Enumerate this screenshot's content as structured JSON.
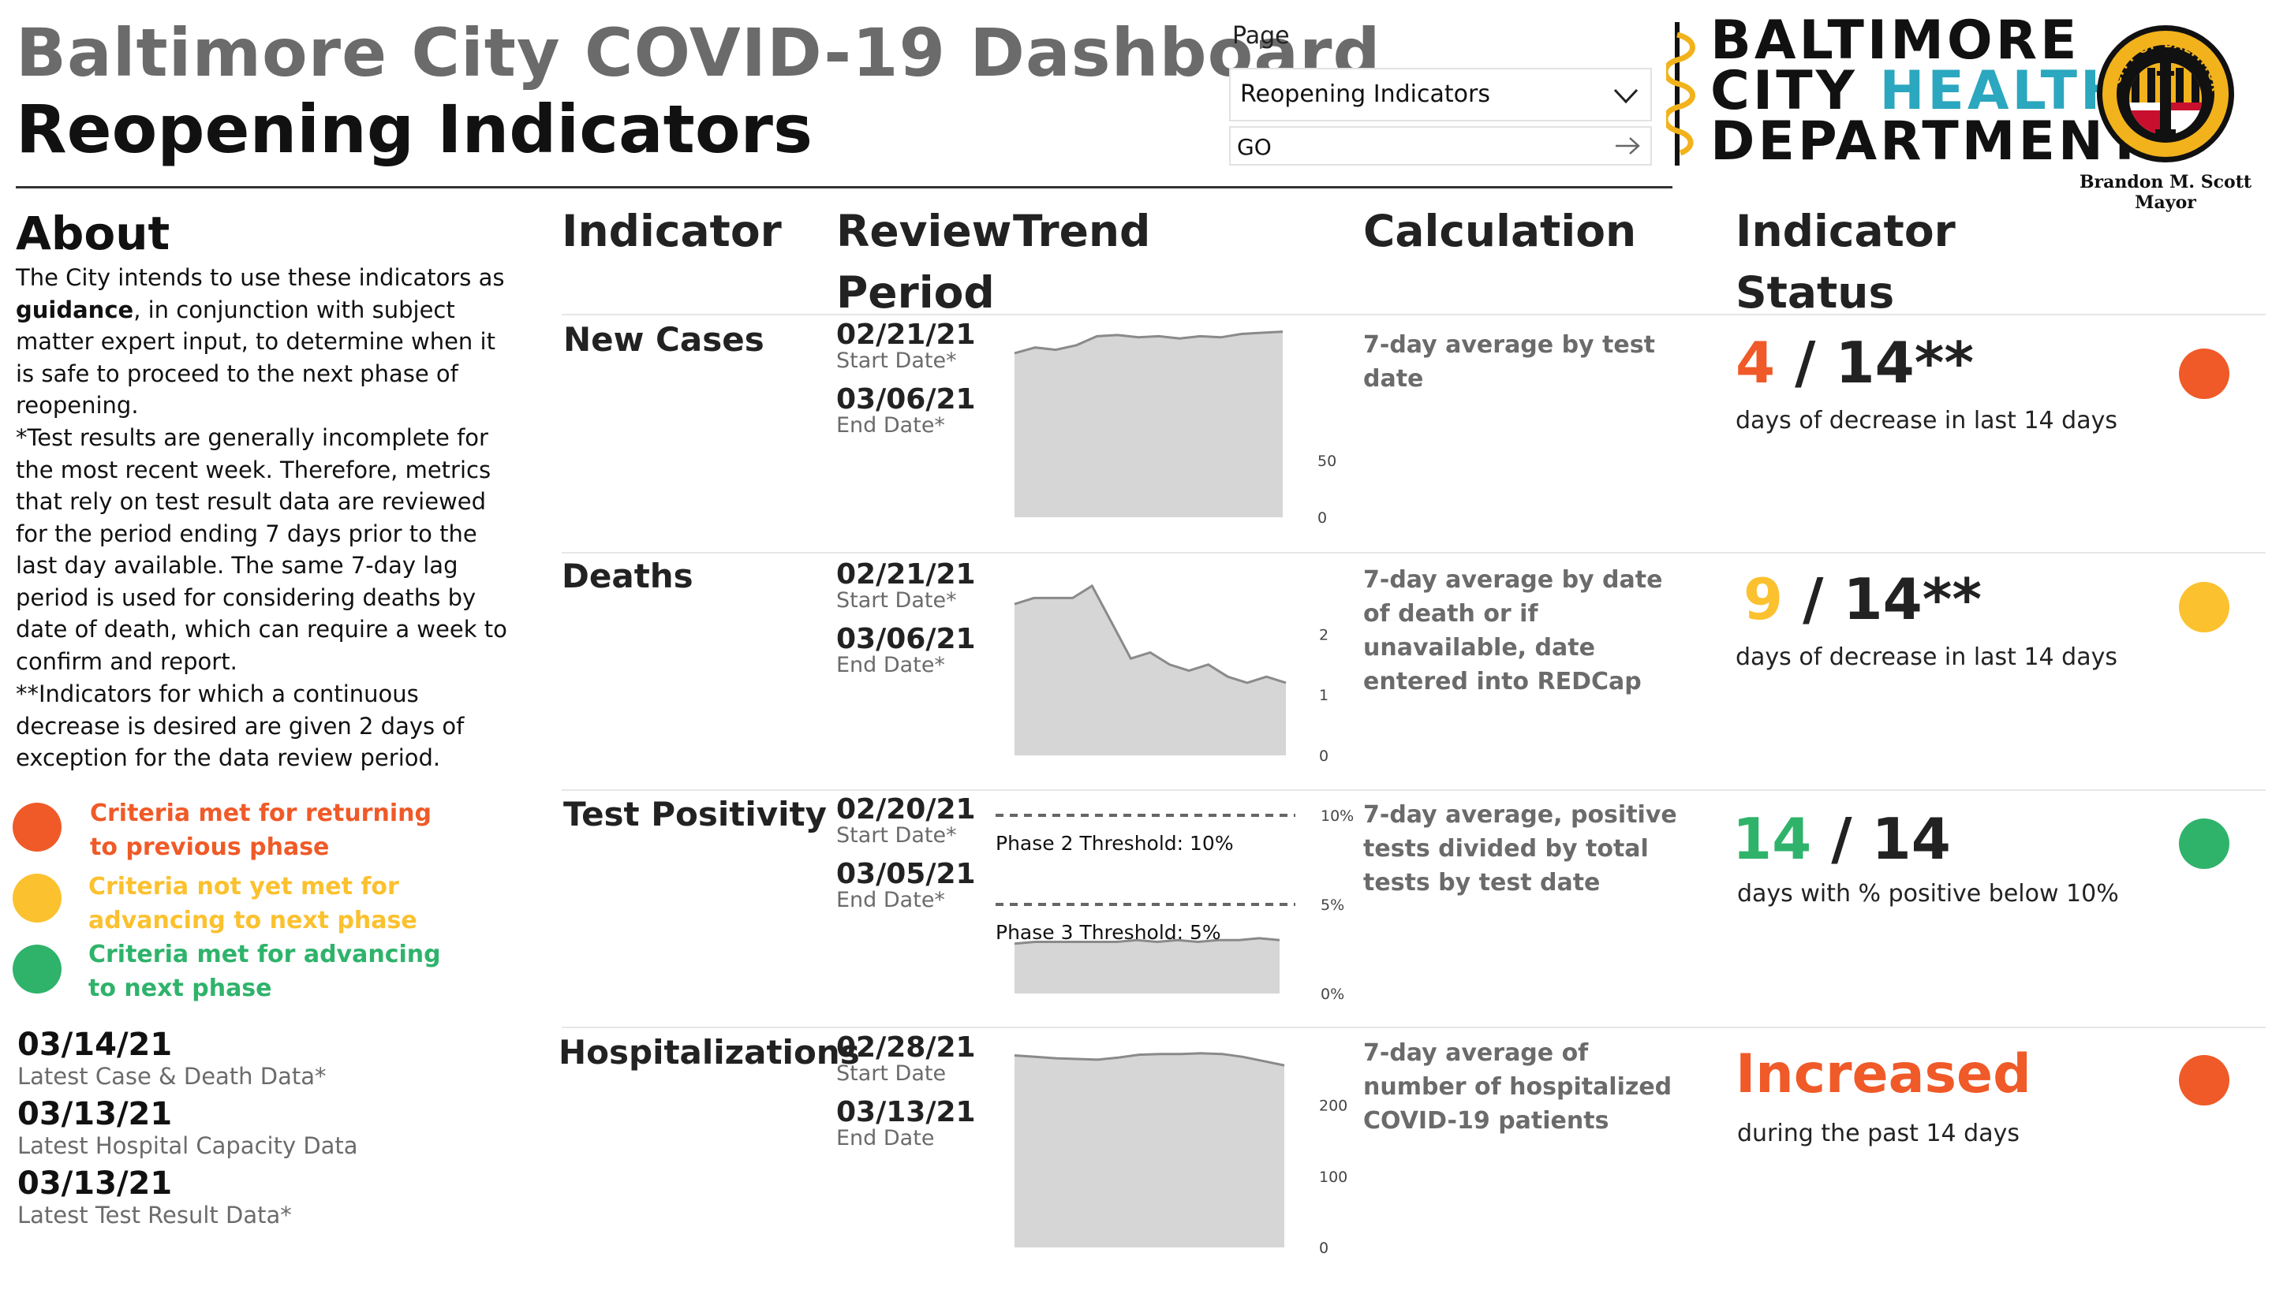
{
  "header": {
    "title": "Baltimore City COVID-19 Dashboard",
    "subtitle": "Reopening Indicators"
  },
  "page_selector": {
    "label": "Page",
    "selected": "Reopening Indicators",
    "go_label": "GO"
  },
  "logo": {
    "line1": "BALTIMORE",
    "line2a": "CITY ",
    "line2b": "HEALTH",
    "line3": "DEPARTMENT",
    "seal_text": "CITY OF BALTIMORE",
    "mayor_name": "Brandon M. Scott",
    "mayor_title": "Mayor"
  },
  "about": {
    "heading": "About",
    "p1_before": "The City intends to use these indicators as ",
    "p1_bold": "guidance",
    "p1_after": ", in conjunction with subject matter expert input, to determine when it is safe to proceed to the next phase of reopening.",
    "p2": "*Test results are generally incomplete for the most recent week. Therefore, metrics that rely on test result data are reviewed for the period ending 7 days prior to the last day available. The same 7-day lag period is used for considering deaths by date of death, which can  require a week to confirm and report.",
    "p3": "**Indicators for which a continuous decrease is desired are given 2 days of exception for the data review period."
  },
  "legend": [
    {
      "line1": "Criteria met for returning",
      "line2": "to previous phase",
      "color": "#ef5a28"
    },
    {
      "line1": "Criteria not yet met for",
      "line2": "advancing to next phase",
      "color": "#fbc12e"
    },
    {
      "line1": "Criteria met for advancing",
      "line2": "to next phase",
      "color": "#2fb36b"
    }
  ],
  "latest": [
    {
      "date": "03/14/21",
      "label": "Latest Case & Death Data*"
    },
    {
      "date": "03/13/21",
      "label": "Latest Hospital Capacity Data"
    },
    {
      "date": "03/13/21",
      "label": "Latest Test Result Data*"
    }
  ],
  "columns": {
    "indicator": "Indicator",
    "review_line1": "Review",
    "review_line2": "Period",
    "trend": "Trend",
    "calculation": "Calculation",
    "status_line1": "Indicator",
    "status_line2": "Status"
  },
  "indicators": [
    {
      "name": "New Cases",
      "start_date": "02/21/21",
      "start_label": "Start Date*",
      "end_date": "03/06/21",
      "end_label": "End Date*",
      "calculation": "7-day average by test date",
      "status_value": "4",
      "status_rest": " / 14**",
      "status_sub": "days of decrease in last 14 days",
      "value_color": "#ef5a28",
      "dot_color": "#ef5a28"
    },
    {
      "name": "Deaths",
      "start_date": "02/21/21",
      "start_label": "Start Date*",
      "end_date": "03/06/21",
      "end_label": "End Date*",
      "calculation": "7-day average by date of death or if unavailable, date entered into REDCap",
      "status_value": "9",
      "status_rest": "  / 14**",
      "status_sub": "days of decrease in last 14 days",
      "value_color": "#fbc12e",
      "dot_color": "#fbc12e"
    },
    {
      "name": "Test Positivity",
      "start_date": "02/20/21",
      "start_label": "Start Date*",
      "end_date": "03/05/21",
      "end_label": "End Date*",
      "calculation": "7-day average, positive tests divided by total tests by test date",
      "status_value": "14",
      "status_rest": " / 14",
      "status_sub": "days with % positive below 10%",
      "value_color": "#2fb36b",
      "dot_color": "#2fb36b"
    },
    {
      "name": "Hospitalizations",
      "start_date": "02/28/21",
      "start_label": "Start Date",
      "end_date": "03/13/21",
      "end_label": "End Date",
      "calculation": "7-day average of number of hospitalized COVID-19 patients",
      "status_value": "Increased",
      "status_rest": "",
      "status_sub": "during the past 14 days",
      "value_color": "#ef5a28",
      "dot_color": "#ef5a28"
    }
  ],
  "chart_data": [
    {
      "type": "area",
      "title": "New Cases trend",
      "x": [
        1,
        2,
        3,
        4,
        5,
        6,
        7,
        8,
        9,
        10,
        11,
        12,
        13,
        14
      ],
      "values": [
        145,
        150,
        148,
        152,
        160,
        161,
        159,
        160,
        158,
        160,
        159,
        162,
        163,
        164
      ],
      "yticks": [
        "50",
        "0"
      ],
      "ytick_values": [
        50,
        0
      ],
      "ylim": [
        0,
        170
      ]
    },
    {
      "type": "area",
      "title": "Deaths trend",
      "x": [
        1,
        2,
        3,
        4,
        5,
        6,
        7,
        8,
        9,
        10,
        11,
        12,
        13,
        14,
        15
      ],
      "values": [
        2.5,
        2.6,
        2.6,
        2.6,
        2.8,
        2.2,
        1.6,
        1.7,
        1.5,
        1.4,
        1.5,
        1.3,
        1.2,
        1.3,
        1.2
      ],
      "yticks": [
        "2",
        "1",
        "0"
      ],
      "ytick_values": [
        2,
        1,
        0
      ],
      "ylim": [
        0,
        3.1
      ]
    },
    {
      "type": "area",
      "title": "Test Positivity trend",
      "x": [
        1,
        2,
        3,
        4,
        5,
        6,
        7,
        8,
        9,
        10,
        11,
        12,
        13,
        14
      ],
      "values": [
        2.8,
        2.9,
        2.9,
        2.9,
        2.9,
        2.9,
        3.0,
        2.9,
        3.0,
        2.9,
        3.0,
        3.0,
        3.1,
        3.0
      ],
      "yticks": [
        "10%",
        "5%",
        "0%"
      ],
      "ytick_values": [
        10,
        5,
        0
      ],
      "ylim": [
        0,
        10
      ],
      "thresholds": [
        {
          "value": 10,
          "label": "Phase 2 Threshold: 10%"
        },
        {
          "value": 5,
          "label": "Phase 3 Threshold: 5%"
        }
      ]
    },
    {
      "type": "area",
      "title": "Hospitalizations trend",
      "x": [
        1,
        2,
        3,
        4,
        5,
        6,
        7,
        8,
        9,
        10,
        11,
        12,
        13,
        14
      ],
      "values": [
        270,
        268,
        266,
        265,
        264,
        267,
        271,
        272,
        272,
        273,
        272,
        268,
        262,
        256
      ],
      "yticks": [
        "200",
        "100",
        "0"
      ],
      "ytick_values": [
        200,
        100,
        0
      ],
      "ylim": [
        0,
        275
      ]
    }
  ]
}
